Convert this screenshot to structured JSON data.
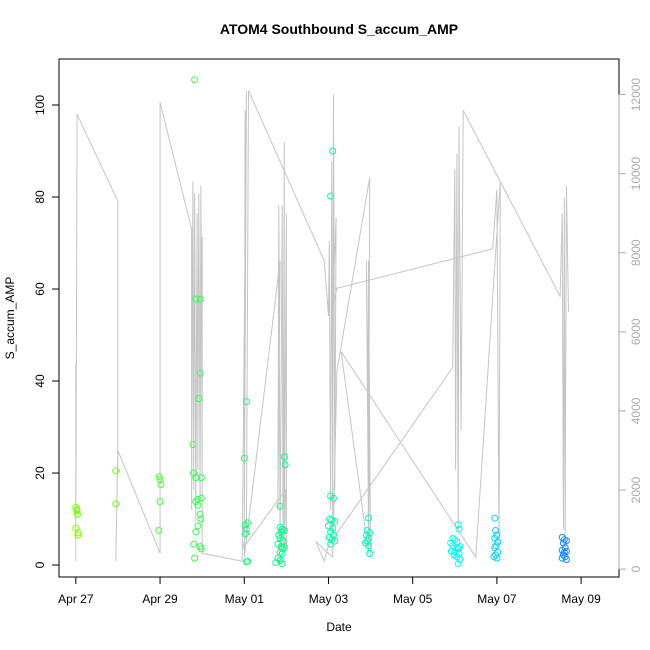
{
  "chart_data": {
    "type": "scatter",
    "title": "ATOM4 Southbound S_accum_AMP",
    "xlabel": "Date",
    "ylabel": "S_accum_AMP",
    "x_ticks": [
      {
        "label": "Apr 27",
        "day": 0
      },
      {
        "label": "Apr 29",
        "day": 2
      },
      {
        "label": "May 01",
        "day": 4
      },
      {
        "label": "May 03",
        "day": 6
      },
      {
        "label": "May 05",
        "day": 8
      },
      {
        "label": "May 07",
        "day": 10
      },
      {
        "label": "May 09",
        "day": 12
      }
    ],
    "xlim": [
      -0.4,
      12.9
    ],
    "ylim": [
      -2.6,
      110
    ],
    "y_ticks": [
      0,
      20,
      40,
      60,
      80,
      100
    ],
    "y2_ticks": [
      0,
      2000,
      4000,
      6000,
      8000,
      10000,
      12000
    ],
    "y2lim": [
      -200,
      12900
    ],
    "grid": false,
    "colors": {
      "secondary_line": "#c4c4c4",
      "secondary_axis": "#aaaaaa",
      "points_start": "#7cff00",
      "points_mid": "#00ff8c",
      "points_cyan": "#00ffff",
      "points_end": "#1e78f0"
    },
    "series": [
      {
        "axis": "left",
        "marker": "open-circle",
        "points": [
          [
            0.0,
            12.5
          ],
          [
            0.02,
            11.8
          ],
          [
            0.04,
            11.0
          ],
          [
            0.0,
            8.0
          ],
          [
            0.06,
            7.0
          ],
          [
            0.05,
            6.5
          ],
          [
            0.03,
            12.0
          ],
          [
            0.95,
            20.5
          ],
          [
            0.95,
            13.3
          ],
          [
            1.98,
            19.2
          ],
          [
            2.0,
            18.5
          ],
          [
            2.02,
            17.5
          ],
          [
            2.0,
            13.8
          ],
          [
            1.97,
            7.5
          ],
          [
            2.82,
            105.5
          ],
          [
            2.85,
            57.8
          ],
          [
            2.95,
            57.8
          ],
          [
            2.95,
            41.7
          ],
          [
            2.92,
            36.2
          ],
          [
            2.78,
            26.2
          ],
          [
            2.8,
            20.0
          ],
          [
            2.85,
            19.0
          ],
          [
            2.98,
            19.0
          ],
          [
            2.9,
            14.3
          ],
          [
            2.98,
            14.5
          ],
          [
            2.85,
            13.8
          ],
          [
            2.9,
            13.0
          ],
          [
            2.95,
            11.0
          ],
          [
            2.97,
            10.0
          ],
          [
            2.9,
            8.5
          ],
          [
            2.85,
            7.2
          ],
          [
            2.8,
            4.5
          ],
          [
            2.95,
            4.0
          ],
          [
            2.98,
            3.5
          ],
          [
            2.82,
            1.5
          ],
          [
            4.05,
            35.5
          ],
          [
            4.0,
            23.2
          ],
          [
            4.08,
            9.2
          ],
          [
            4.02,
            8.7
          ],
          [
            4.05,
            7.8
          ],
          [
            4.03,
            6.8
          ],
          [
            4.08,
            0.8
          ],
          [
            4.05,
            0.7
          ],
          [
            4.85,
            12.8
          ],
          [
            4.95,
            23.5
          ],
          [
            4.97,
            21.8
          ],
          [
            4.85,
            8.2
          ],
          [
            4.9,
            7.8
          ],
          [
            4.88,
            7.2
          ],
          [
            4.95,
            7.5
          ],
          [
            4.82,
            6.5
          ],
          [
            4.85,
            5.8
          ],
          [
            4.92,
            5.2
          ],
          [
            4.8,
            4.5
          ],
          [
            4.88,
            4.0
          ],
          [
            4.9,
            3.5
          ],
          [
            4.95,
            3.8
          ],
          [
            4.85,
            2.8
          ],
          [
            4.9,
            2.5
          ],
          [
            4.8,
            1.5
          ],
          [
            4.85,
            1.0
          ],
          [
            4.75,
            0.5
          ],
          [
            4.9,
            0.3
          ],
          [
            6.1,
            90.0
          ],
          [
            6.05,
            80.2
          ],
          [
            6.05,
            15.0
          ],
          [
            6.12,
            14.5
          ],
          [
            6.03,
            10.0
          ],
          [
            6.08,
            9.8
          ],
          [
            6.15,
            9.5
          ],
          [
            6.0,
            8.5
          ],
          [
            6.1,
            8.0
          ],
          [
            6.05,
            7.2
          ],
          [
            6.12,
            6.5
          ],
          [
            6.02,
            6.0
          ],
          [
            6.08,
            5.5
          ],
          [
            6.15,
            5.2
          ],
          [
            6.05,
            4.5
          ],
          [
            6.95,
            10.2
          ],
          [
            6.92,
            7.5
          ],
          [
            6.98,
            7.0
          ],
          [
            6.9,
            6.5
          ],
          [
            6.95,
            5.8
          ],
          [
            6.92,
            5.2
          ],
          [
            6.88,
            4.8
          ],
          [
            6.95,
            4.2
          ],
          [
            6.98,
            2.5
          ],
          [
            8.95,
            5.8
          ],
          [
            9.0,
            5.5
          ],
          [
            8.9,
            4.8
          ],
          [
            8.95,
            4.2
          ],
          [
            9.05,
            3.8
          ],
          [
            8.92,
            3.0
          ],
          [
            9.0,
            2.8
          ],
          [
            8.98,
            2.2
          ],
          [
            9.08,
            8.8
          ],
          [
            9.1,
            7.8
          ],
          [
            9.05,
            5.0
          ],
          [
            9.12,
            4.0
          ],
          [
            9.08,
            3.5
          ],
          [
            9.1,
            2.5
          ],
          [
            9.05,
            1.8
          ],
          [
            9.12,
            1.2
          ],
          [
            9.08,
            0.3
          ],
          [
            9.95,
            10.2
          ],
          [
            9.97,
            7.5
          ],
          [
            10.0,
            6.5
          ],
          [
            9.95,
            5.8
          ],
          [
            10.02,
            5.0
          ],
          [
            9.98,
            4.2
          ],
          [
            9.95,
            3.8
          ],
          [
            10.02,
            2.8
          ],
          [
            9.97,
            2.2
          ],
          [
            9.93,
            1.8
          ],
          [
            10.0,
            1.5
          ],
          [
            11.55,
            6.0
          ],
          [
            11.6,
            5.5
          ],
          [
            11.65,
            5.3
          ],
          [
            11.58,
            4.8
          ],
          [
            11.62,
            3.8
          ],
          [
            11.55,
            3.2
          ],
          [
            11.65,
            3.0
          ],
          [
            11.6,
            2.8
          ],
          [
            11.58,
            2.2
          ],
          [
            11.62,
            1.8
          ],
          [
            11.55,
            1.5
          ],
          [
            11.65,
            1.2
          ]
        ]
      },
      {
        "axis": "right",
        "style": "line",
        "points": [
          [
            0.0,
            200
          ],
          [
            0.0,
            5200
          ],
          [
            0.0,
            600
          ],
          [
            0.03,
            11500
          ],
          [
            1.0,
            9300
          ],
          [
            1.0,
            3200
          ],
          [
            0.95,
            200
          ],
          [
            1.0,
            3000
          ],
          [
            2.0,
            400
          ],
          [
            2.0,
            11800
          ],
          [
            2.75,
            8600
          ],
          [
            2.75,
            1500
          ],
          [
            2.78,
            9800
          ],
          [
            2.8,
            2000
          ],
          [
            2.82,
            9500
          ],
          [
            2.85,
            1200
          ],
          [
            2.88,
            9000
          ],
          [
            2.9,
            2500
          ],
          [
            2.92,
            9500
          ],
          [
            2.95,
            1800
          ],
          [
            2.97,
            9700
          ],
          [
            3.0,
            2200
          ],
          [
            3.0,
            8400
          ],
          [
            3.0,
            400
          ],
          [
            3.95,
            200
          ],
          [
            4.05,
            12100
          ],
          [
            4.0,
            1000
          ],
          [
            4.02,
            11600
          ],
          [
            4.0,
            300
          ],
          [
            4.85,
            7800
          ],
          [
            4.8,
            1500
          ],
          [
            4.82,
            9200
          ],
          [
            4.85,
            600
          ],
          [
            4.9,
            9200
          ],
          [
            4.92,
            400
          ],
          [
            4.95,
            10800
          ],
          [
            4.95,
            500
          ],
          [
            5.0,
            9000
          ],
          [
            5.0,
            500
          ],
          [
            4.98,
            2000
          ],
          [
            3.95,
            500
          ],
          [
            4.05,
            900
          ],
          [
            4.1,
            12100
          ],
          [
            5.9,
            7800
          ],
          [
            6.0,
            6400
          ],
          [
            6.02,
            8300
          ],
          [
            6.05,
            1500
          ],
          [
            6.08,
            10300
          ],
          [
            6.1,
            1000
          ],
          [
            6.12,
            12000
          ],
          [
            6.15,
            2000
          ],
          [
            6.18,
            8900
          ],
          [
            6.1,
            6600
          ],
          [
            6.2,
            7100
          ],
          [
            9.9,
            8100
          ],
          [
            10.0,
            9600
          ],
          [
            10.05,
            600
          ],
          [
            10.08,
            9800
          ],
          [
            9.5,
            300
          ],
          [
            6.3,
            5500
          ],
          [
            6.95,
            400
          ],
          [
            6.95,
            7800
          ],
          [
            7.0,
            300
          ],
          [
            6.9,
            7800
          ],
          [
            6.95,
            1000
          ],
          [
            6.98,
            9900
          ],
          [
            6.2,
            5000
          ],
          [
            6.1,
            300
          ],
          [
            5.7,
            700
          ],
          [
            5.9,
            200
          ],
          [
            6.0,
            600
          ],
          [
            8.95,
            5100
          ],
          [
            9.0,
            10100
          ],
          [
            9.02,
            2500
          ],
          [
            9.05,
            10500
          ],
          [
            9.08,
            1000
          ],
          [
            9.1,
            11200
          ],
          [
            9.15,
            3500
          ],
          [
            9.2,
            11600
          ],
          [
            11.5,
            6900
          ],
          [
            11.55,
            9000
          ],
          [
            11.58,
            1000
          ],
          [
            11.6,
            9400
          ],
          [
            11.62,
            600
          ],
          [
            11.65,
            9700
          ],
          [
            11.7,
            6500
          ]
        ]
      }
    ]
  }
}
